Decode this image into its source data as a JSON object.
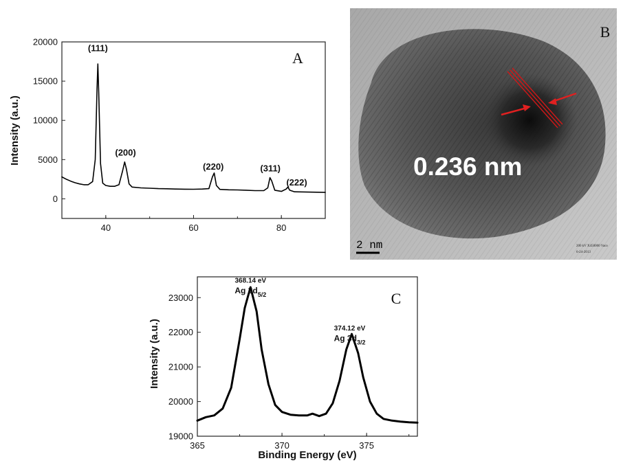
{
  "panels": {
    "a_label": "A",
    "b_label": "B",
    "c_label": "C"
  },
  "chart_data": [
    {
      "type": "line",
      "panel": "A",
      "xlabel": "",
      "ylabel": "Intensity (a.u.)",
      "xlim": [
        30,
        90
      ],
      "ylim": [
        -2500,
        20000
      ],
      "xticks": [
        40,
        60,
        80
      ],
      "yticks": [
        0,
        5000,
        10000,
        15000,
        20000
      ],
      "series": [
        {
          "x": [
            30,
            31,
            32,
            33,
            34,
            35,
            36,
            37,
            37.6,
            38.0,
            38.2,
            38.4,
            38.8,
            39.3,
            40,
            41,
            42,
            43,
            43.8,
            44.3,
            44.7,
            45.3,
            46,
            48,
            50,
            52,
            54,
            56,
            58,
            60,
            62,
            63.5,
            64.3,
            64.7,
            65.2,
            66,
            68,
            70,
            72,
            74,
            76,
            76.9,
            77.4,
            77.8,
            78.5,
            80,
            81.1,
            81.5,
            81.9,
            83,
            85,
            87,
            90
          ],
          "y": [
            2800,
            2500,
            2250,
            2050,
            1900,
            1800,
            1800,
            2200,
            5000,
            14000,
            17200,
            13500,
            4500,
            2000,
            1700,
            1600,
            1600,
            1800,
            3500,
            4700,
            3800,
            1900,
            1500,
            1400,
            1350,
            1300,
            1280,
            1250,
            1230,
            1220,
            1250,
            1300,
            2800,
            3300,
            1700,
            1200,
            1150,
            1130,
            1100,
            1050,
            1050,
            1400,
            2700,
            2300,
            1100,
            950,
            1250,
            1500,
            1100,
            900,
            880,
            850,
            820
          ]
        }
      ],
      "annotations": [
        {
          "text": "(111)",
          "x": 38.2,
          "y": 18800
        },
        {
          "text": "(200)",
          "x": 44.5,
          "y": 5500
        },
        {
          "text": "(220)",
          "x": 64.5,
          "y": 3700
        },
        {
          "text": "(311)",
          "x": 77.5,
          "y": 3500
        },
        {
          "text": "(222)",
          "x": 83.5,
          "y": 1700
        }
      ]
    },
    {
      "type": "line",
      "panel": "C",
      "xlabel": "Binding Energy (eV)",
      "ylabel": "Intensity (a.u.)",
      "xlim": [
        365,
        378
      ],
      "ylim": [
        19000,
        23600
      ],
      "xticks": [
        365,
        370,
        375
      ],
      "yticks": [
        19000,
        20000,
        21000,
        22000,
        23000
      ],
      "series": [
        {
          "x": [
            365,
            365.5,
            366,
            366.5,
            367,
            367.5,
            367.8,
            368.14,
            368.5,
            368.8,
            369.2,
            369.6,
            370,
            370.5,
            371,
            371.5,
            371.8,
            372.2,
            372.6,
            373,
            373.4,
            373.8,
            374.12,
            374.5,
            374.8,
            375.2,
            375.6,
            376,
            376.5,
            377,
            377.5,
            378
          ],
          "y": [
            19450,
            19550,
            19600,
            19800,
            20400,
            21800,
            22700,
            23300,
            22600,
            21500,
            20500,
            19900,
            19700,
            19620,
            19600,
            19600,
            19650,
            19580,
            19650,
            19950,
            20600,
            21500,
            21950,
            21400,
            20700,
            20000,
            19650,
            19500,
            19450,
            19420,
            19400,
            19390
          ]
        }
      ],
      "annotations": [
        {
          "text": "368.14 eV",
          "x": 368.14,
          "y": 23430
        },
        {
          "text": "Ag 3d",
          "sub": "5/2",
          "x": 368.14,
          "y": 23120
        },
        {
          "text": "374.12 eV",
          "x": 374.0,
          "y": 22050
        },
        {
          "text": "Ag 3d",
          "sub": "3/2",
          "x": 374.0,
          "y": 21750
        }
      ]
    }
  ],
  "tem": {
    "spacing_label": "0.236 nm",
    "scale_label": "2 nm",
    "info_line1": "200 kV   X450000   Vaco",
    "info_line2": "6-24-2013",
    "arrow_color": "#e02020",
    "fringe_color": "#d01818"
  }
}
